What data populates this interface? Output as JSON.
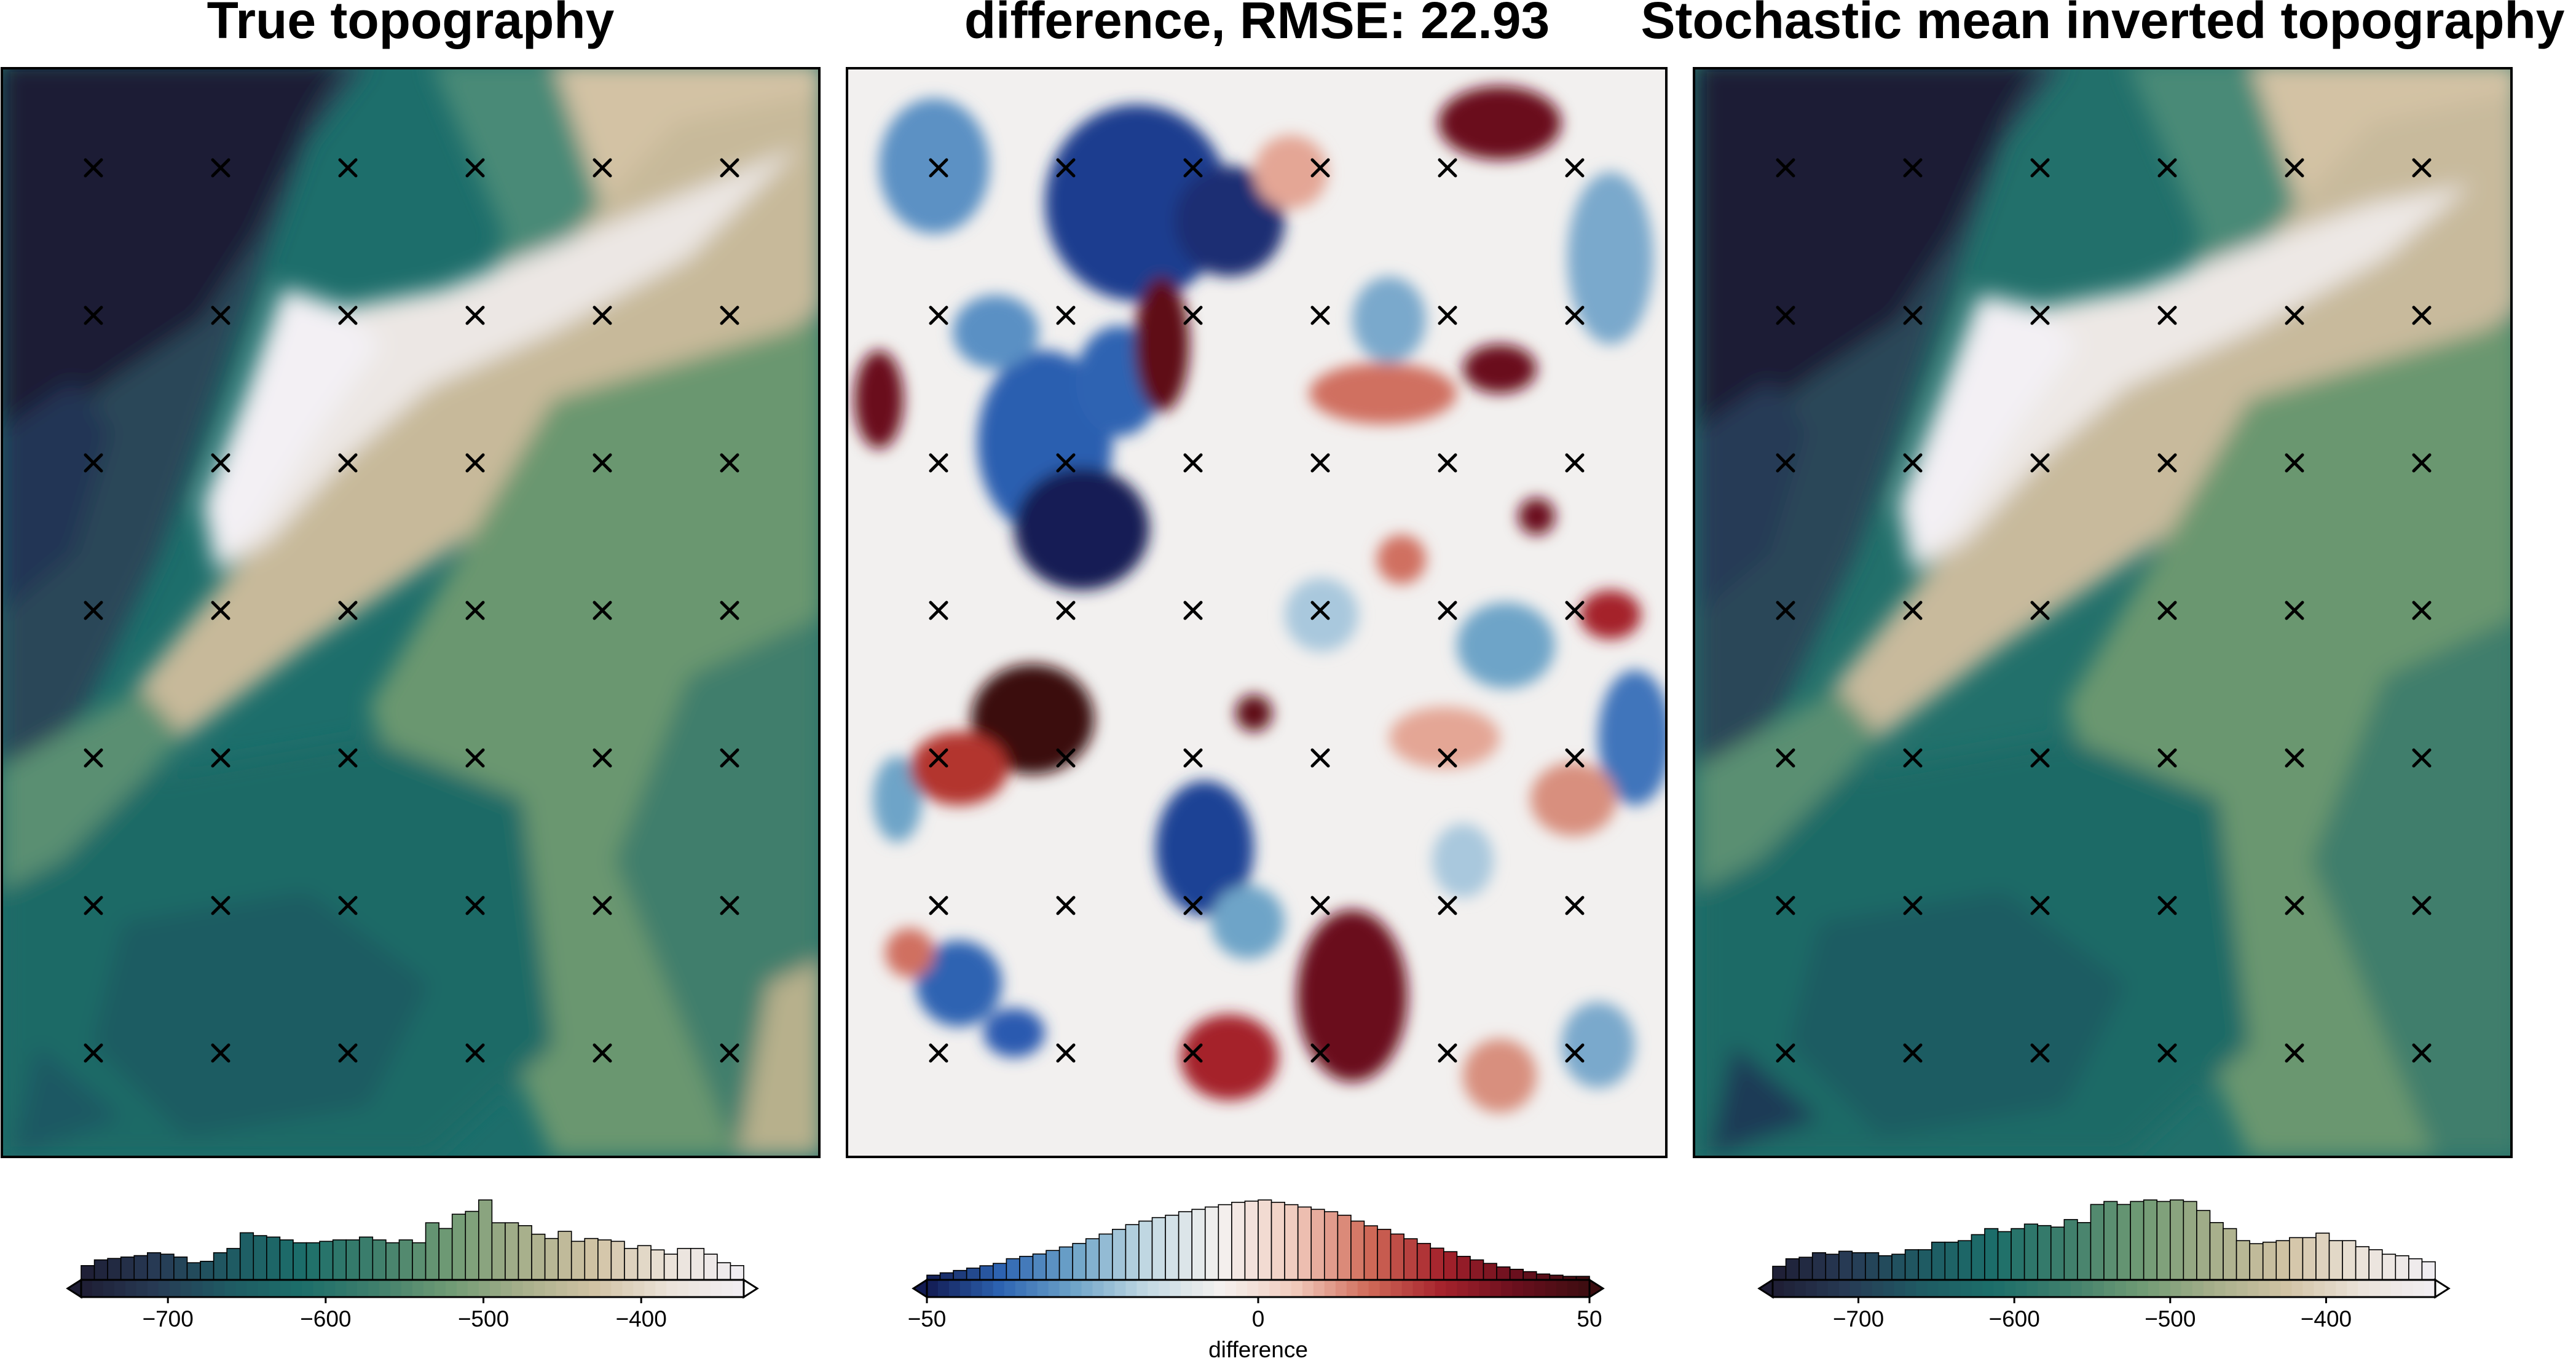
{
  "figure": {
    "panels": [
      {
        "id": "true",
        "title": "True topography",
        "colormap": [
          "#1e1d34",
          "#273a54",
          "#1f5a63",
          "#1c6e6a",
          "#3f7f6c",
          "#6f9a74",
          "#a7af8b",
          "#d2c3a5",
          "#ebe3da",
          "#f1eef3"
        ],
        "colorbar": {
          "min": -755,
          "max": -335,
          "extend": "both-left-filled",
          "ticks": [
            -700,
            -600,
            -500,
            -400
          ],
          "tick_labels": [
            "−700",
            "−600",
            "−500",
            "−400"
          ],
          "label": "",
          "hist_counts": [
            10,
            14,
            15,
            16,
            17,
            19,
            18,
            16,
            12,
            13,
            19,
            22,
            33,
            31,
            30,
            28,
            26,
            26,
            27,
            28,
            28,
            30,
            28,
            26,
            28,
            26,
            40,
            36,
            46,
            48,
            56,
            40,
            40,
            38,
            32,
            29,
            34,
            27,
            29,
            28,
            27,
            22,
            24,
            21,
            18,
            22,
            22,
            18,
            12,
            10
          ]
        }
      },
      {
        "id": "diff",
        "title": "difference, RMSE: 22.93",
        "colormap": [
          "#3b0d10",
          "#6a0f1d",
          "#a5222c",
          "#d06a58",
          "#f1cbbd",
          "#f4f1ef",
          "#c3d9e3",
          "#6ea4c8",
          "#2d64b2",
          "#121b52"
        ],
        "colorbar": {
          "min": -50,
          "max": 50,
          "extend": "both",
          "ticks": [
            -50,
            0,
            50
          ],
          "tick_labels": [
            "−50",
            "0",
            "50"
          ],
          "label": "difference",
          "hist_counts": [
            4,
            6,
            8,
            10,
            12,
            14,
            18,
            20,
            22,
            25,
            28,
            31,
            35,
            39,
            43,
            47,
            50,
            53,
            55,
            58,
            60,
            62,
            64,
            66,
            67,
            68,
            66,
            64,
            62,
            60,
            58,
            55,
            50,
            46,
            43,
            39,
            35,
            31,
            27,
            24,
            20,
            17,
            14,
            11,
            9,
            7,
            5,
            4,
            3,
            3
          ]
        }
      },
      {
        "id": "inverted",
        "title": "Stochastic mean inverted topography",
        "colormap": [
          "#1e1d34",
          "#273a54",
          "#1f5a63",
          "#1c6e6a",
          "#3f7f6c",
          "#6f9a74",
          "#a7af8b",
          "#d2c3a5",
          "#ebe3da",
          "#f1eef3"
        ],
        "colorbar": {
          "min": -755,
          "max": -330,
          "extend": "both-left-filled",
          "ticks": [
            -700,
            -600,
            -500,
            -400
          ],
          "tick_labels": [
            "−700",
            "−600",
            "−500",
            "−400"
          ],
          "label": "",
          "hist_counts": [
            9,
            14,
            15,
            18,
            17,
            19,
            18,
            18,
            16,
            17,
            20,
            20,
            25,
            25,
            26,
            30,
            34,
            32,
            34,
            37,
            36,
            35,
            40,
            38,
            50,
            52,
            50,
            52,
            53,
            52,
            53,
            52,
            46,
            38,
            34,
            26,
            24,
            25,
            26,
            28,
            28,
            31,
            26,
            26,
            22,
            20,
            17,
            16,
            14,
            12
          ]
        }
      }
    ],
    "marker_grid": {
      "cols": 6,
      "rows": 7,
      "symbol": "x"
    }
  },
  "chart_data": [
    {
      "type": "heatmap",
      "title": "True topography",
      "xlabel": "",
      "ylabel": "",
      "colorbar_range": [
        -755,
        -335
      ],
      "colorbar_ticks": [
        -700,
        -600,
        -500,
        -400
      ],
      "value_note": "Topography values range roughly -750 (northwest lows) to -340 (central ridge high)"
    },
    {
      "type": "heatmap",
      "title": "difference, RMSE: 22.93",
      "xlabel": "",
      "ylabel": "",
      "rmse": 22.93,
      "colorbar_range": [
        -50,
        50
      ],
      "colorbar_ticks": [
        -50,
        0,
        50
      ],
      "colorbar_label": "difference"
    },
    {
      "type": "heatmap",
      "title": "Stochastic mean inverted topography",
      "xlabel": "",
      "ylabel": "",
      "colorbar_range": [
        -755,
        -330
      ],
      "colorbar_ticks": [
        -700,
        -600,
        -500,
        -400
      ]
    }
  ]
}
